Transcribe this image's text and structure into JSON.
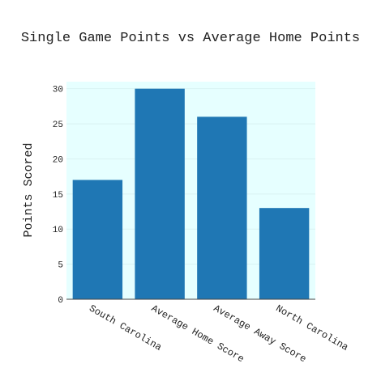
{
  "chart_data": {
    "type": "bar",
    "title": "Single Game Points vs Average Home Points",
    "xlabel": "",
    "ylabel": "Points Scored",
    "categories": [
      "South Carolina",
      "Average Home Score",
      "Average Away Score",
      "North Carolina"
    ],
    "values": [
      17,
      30,
      26,
      13
    ],
    "ylim": [
      0,
      31
    ],
    "yticks": [
      0,
      5,
      10,
      15,
      20,
      25,
      30
    ],
    "grid": true,
    "legend": "none",
    "colors": {
      "bar": "#1f77b4",
      "plot_bg": "#e6ffff",
      "grid": "#d9f2f2",
      "axis": "#444444"
    }
  }
}
